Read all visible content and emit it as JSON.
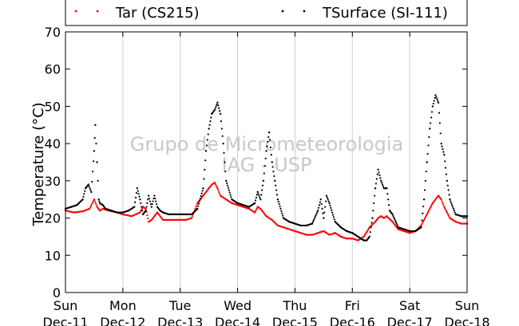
{
  "chart_data": {
    "type": "scatter",
    "title": "",
    "xlabel": "",
    "ylabel": "Temperature (°C)",
    "ylim": [
      0,
      70
    ],
    "yticks": [
      0,
      10,
      20,
      30,
      40,
      50,
      60,
      70
    ],
    "xlim": [
      0,
      7
    ],
    "xtick_labels": [
      {
        "day": "Sun",
        "date": "Dec-11"
      },
      {
        "day": "Mon",
        "date": "Dec-12"
      },
      {
        "day": "Tue",
        "date": "Dec-13"
      },
      {
        "day": "Wed",
        "date": "Dec-14"
      },
      {
        "day": "Thu",
        "date": "Dec-15"
      },
      {
        "day": "Fri",
        "date": "Dec-16"
      },
      {
        "day": "Sat",
        "date": "Dec-17"
      },
      {
        "day": "Sun",
        "date": "Dec-18"
      }
    ],
    "grid": "vertical",
    "legend_position": "top",
    "watermark": [
      "Grupo de Micrometeorologia",
      "IAG - USP"
    ],
    "series": [
      {
        "name": "Tar (CS215)",
        "color": "#ff0000",
        "x": [
          0.0,
          0.15,
          0.3,
          0.42,
          0.5,
          0.55,
          0.6,
          0.65,
          0.75,
          0.9,
          1.0,
          1.15,
          1.3,
          1.35,
          1.4,
          1.45,
          1.5,
          1.6,
          1.7,
          1.75,
          1.85,
          2.0,
          2.1,
          2.2,
          2.3,
          2.4,
          2.5,
          2.55,
          2.6,
          2.65,
          2.7,
          2.8,
          2.9,
          3.0,
          3.1,
          3.2,
          3.3,
          3.35,
          3.4,
          3.5,
          3.6,
          3.7,
          3.8,
          4.0,
          4.2,
          4.3,
          4.4,
          4.5,
          4.6,
          4.7,
          4.8,
          4.9,
          5.0,
          5.1,
          5.2,
          5.3,
          5.4,
          5.45,
          5.5,
          5.55,
          5.6,
          5.7,
          5.8,
          5.9,
          6.0,
          6.1,
          6.2,
          6.3,
          6.4,
          6.5,
          6.55,
          6.6,
          6.7,
          6.8,
          6.9,
          7.0
        ],
        "y": [
          22,
          21.5,
          21.8,
          22.5,
          25,
          23,
          22,
          22.5,
          22,
          21.5,
          21,
          20.5,
          21.5,
          23,
          22.5,
          19,
          19.5,
          21.5,
          19.5,
          19.5,
          19.5,
          19.5,
          19.5,
          20,
          24,
          26,
          28,
          29,
          29.5,
          28,
          26,
          25,
          24,
          23.5,
          23,
          22.5,
          21.5,
          23,
          22.5,
          20.5,
          19.5,
          18,
          17.5,
          16.5,
          15.5,
          15.5,
          16,
          16.5,
          15.5,
          16,
          15,
          14.5,
          14.5,
          14,
          15,
          17.5,
          19,
          20,
          20.5,
          20,
          20.5,
          19,
          17,
          16.5,
          16,
          16.5,
          18,
          21,
          24,
          26,
          25,
          23,
          20,
          19,
          18.5,
          18.5
        ]
      },
      {
        "name": "TSurface (SI-111)",
        "color": "#000000",
        "x": [
          0.0,
          0.1,
          0.2,
          0.3,
          0.35,
          0.4,
          0.45,
          0.5,
          0.52,
          0.55,
          0.58,
          0.6,
          0.65,
          0.7,
          0.8,
          0.9,
          1.0,
          1.1,
          1.2,
          1.25,
          1.3,
          1.35,
          1.4,
          1.45,
          1.5,
          1.55,
          1.6,
          1.65,
          1.7,
          1.8,
          1.9,
          2.0,
          2.1,
          2.2,
          2.3,
          2.4,
          2.45,
          2.5,
          2.55,
          2.6,
          2.65,
          2.7,
          2.75,
          2.8,
          2.9,
          3.0,
          3.1,
          3.2,
          3.3,
          3.35,
          3.4,
          3.45,
          3.5,
          3.55,
          3.6,
          3.65,
          3.7,
          3.8,
          3.9,
          4.0,
          4.1,
          4.2,
          4.3,
          4.4,
          4.45,
          4.5,
          4.55,
          4.6,
          4.7,
          4.8,
          4.9,
          5.0,
          5.1,
          5.2,
          5.25,
          5.3,
          5.35,
          5.4,
          5.45,
          5.5,
          5.55,
          5.6,
          5.65,
          5.7,
          5.8,
          5.9,
          6.0,
          6.1,
          6.2,
          6.25,
          6.3,
          6.35,
          6.4,
          6.45,
          6.5,
          6.55,
          6.6,
          6.65,
          6.7,
          6.8,
          6.9,
          7.0
        ],
        "y": [
          22.5,
          23,
          23.5,
          25,
          28,
          29,
          27,
          38,
          45,
          35,
          25,
          24,
          23.5,
          22.5,
          22,
          21.5,
          21.5,
          22,
          23,
          28,
          25,
          21,
          22,
          26,
          23,
          26,
          23,
          22,
          21.5,
          21,
          21,
          21,
          21,
          21,
          22.5,
          28,
          38,
          44,
          48,
          49,
          51,
          48,
          40,
          30,
          25,
          24,
          23.5,
          23,
          24,
          27,
          25,
          30,
          38,
          43,
          35,
          30,
          25,
          20,
          19,
          18.5,
          18,
          18,
          18.5,
          22,
          25,
          20,
          26,
          24,
          19,
          17.5,
          16.5,
          16,
          15,
          14,
          14,
          15,
          20,
          28,
          33,
          30,
          28,
          28,
          22,
          21,
          17.5,
          17,
          16.5,
          16.5,
          17.5,
          25,
          35,
          44,
          50,
          53,
          51,
          40,
          37,
          30,
          25,
          21,
          20.5,
          20.5
        ]
      }
    ]
  }
}
